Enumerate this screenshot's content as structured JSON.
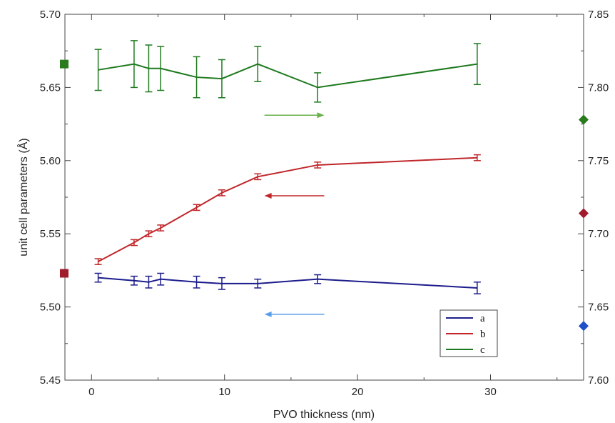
{
  "chart_data": {
    "type": "line",
    "xlabel": "PVO thickness (nm)",
    "ylabel": "unit cell parameters (Å)",
    "xlim": [
      -2,
      37
    ],
    "ylim": [
      5.45,
      5.7
    ],
    "y2lim": [
      7.6,
      7.85
    ],
    "x_ticks": [
      0,
      10,
      20,
      30
    ],
    "x_tick_labels": [
      "0",
      "10",
      "20",
      "30"
    ],
    "y_ticks": [
      5.45,
      5.5,
      5.55,
      5.6,
      5.65,
      5.7
    ],
    "y_tick_labels": [
      "5.45",
      "5.50",
      "5.55",
      "5.60",
      "5.65",
      "5.70"
    ],
    "y2_ticks": [
      7.6,
      7.65,
      7.7,
      7.75,
      7.8,
      7.85
    ],
    "y2_tick_labels": [
      "7.60",
      "7.65",
      "7.70",
      "7.75",
      "7.80",
      "7.85"
    ],
    "legend_position": "bottom-right",
    "series": [
      {
        "name": "a",
        "color": "#1c1c8c",
        "axis": "left",
        "x": [
          0.5,
          3.2,
          4.3,
          5.2,
          7.9,
          9.8,
          12.5,
          17,
          29
        ],
        "y": [
          5.52,
          5.518,
          5.517,
          5.519,
          5.517,
          5.516,
          5.516,
          5.519,
          5.513
        ],
        "err": [
          0.003,
          0.003,
          0.004,
          0.004,
          0.004,
          0.004,
          0.003,
          0.003,
          0.004
        ]
      },
      {
        "name": "b",
        "color": "#c0262a",
        "axis": "left",
        "x": [
          0.5,
          3.2,
          4.3,
          5.2,
          7.9,
          9.8,
          12.5,
          17,
          29
        ],
        "y": [
          5.531,
          5.544,
          5.55,
          5.554,
          5.568,
          5.578,
          5.589,
          5.597,
          5.602
        ],
        "err": [
          0.002,
          0.002,
          0.002,
          0.002,
          0.002,
          0.002,
          0.002,
          0.002,
          0.002
        ]
      },
      {
        "name": "c",
        "color": "#1e7a1e",
        "axis": "right",
        "x": [
          0.5,
          3.2,
          4.3,
          5.2,
          7.9,
          9.8,
          12.5,
          17,
          29
        ],
        "y": [
          7.812,
          7.816,
          7.813,
          7.813,
          7.807,
          7.806,
          7.816,
          7.8,
          7.816
        ],
        "err": [
          0.014,
          0.016,
          0.016,
          0.015,
          0.014,
          0.013,
          0.012,
          0.01,
          0.014
        ]
      }
    ],
    "reference_markers": [
      {
        "series": "a",
        "shape": "diamond",
        "axis": "right",
        "value": 7.637,
        "side": "right",
        "color": "#1f50c8"
      },
      {
        "series": "b",
        "shape": "square",
        "axis": "left",
        "value": 5.523,
        "side": "left",
        "color": "#a01c2c"
      },
      {
        "series": "b",
        "shape": "diamond",
        "axis": "right",
        "value": 7.714,
        "side": "right",
        "color": "#a01c2c"
      },
      {
        "series": "c",
        "shape": "square",
        "axis": "left",
        "value": 5.666,
        "side": "left",
        "color": "#2a7a1e"
      },
      {
        "series": "c",
        "shape": "diamond",
        "axis": "right",
        "value": 7.778,
        "side": "right",
        "color": "#2a7a1e"
      }
    ],
    "axis_arrows": [
      {
        "series": "c",
        "direction": "right",
        "y": 5.631,
        "x_from": 13.0,
        "x_to": 17.5,
        "color": "#6ab04c"
      },
      {
        "series": "b",
        "direction": "left",
        "y": 5.576,
        "x_from": 17.5,
        "x_to": 13.0,
        "color": "#c0262a"
      },
      {
        "series": "a",
        "direction": "left",
        "y": 5.495,
        "x_from": 17.5,
        "x_to": 13.0,
        "color": "#5b9ee8"
      }
    ]
  }
}
